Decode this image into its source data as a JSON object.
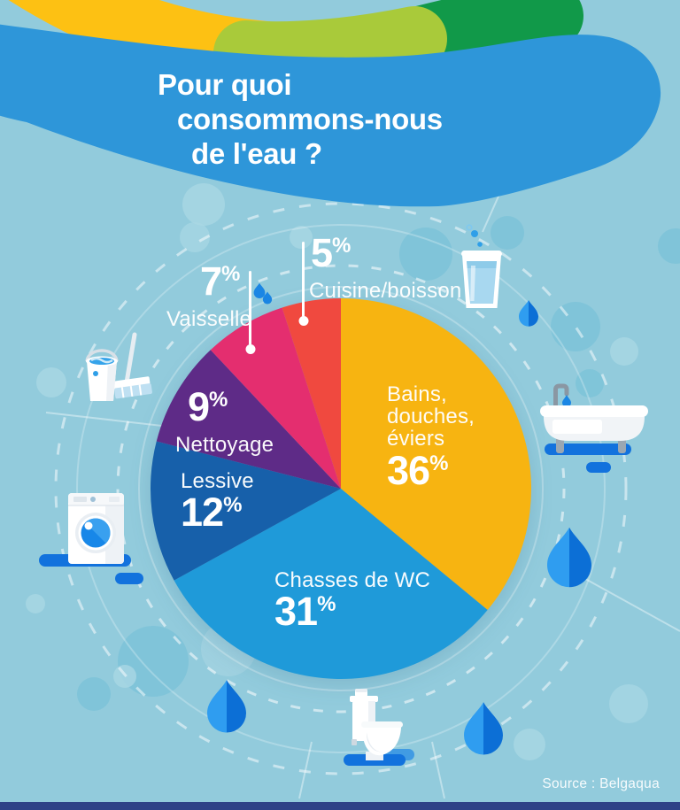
{
  "page": {
    "background_color": "#92cbdc",
    "footer_bar_color": "#2e4287",
    "source_label": "Source : Belgaqua"
  },
  "header": {
    "title_line1": "Pour quoi",
    "title_line2": "consommons-nous",
    "title_line3": "de l'eau ?",
    "blob_color": "#2e96d9",
    "band_colors": {
      "yellow": "#fdc113",
      "light_green": "#a9ca3a",
      "dark_green": "#119949"
    }
  },
  "chart_data": {
    "type": "pie",
    "title": "Pour quoi consommons-nous de l'eau ?",
    "unit": "%",
    "percent_sign": "%",
    "direction": "clockwise",
    "start_angle_deg": 0,
    "center": [
      385,
      552
    ],
    "radius": 215,
    "legend_position": "on-slice-and-callouts",
    "source": "Belgaqua",
    "slices": [
      {
        "label": "Bains, douches, éviers",
        "label_lines": [
          "Bains,",
          "douches,",
          "éviers"
        ],
        "value": 36,
        "color": "#f7b411"
      },
      {
        "label": "Chasses de WC",
        "value": 31,
        "color": "#1f9ad9"
      },
      {
        "label": "Lessive",
        "value": 12,
        "color": "#1760aa"
      },
      {
        "label": "Nettoyage",
        "value": 9,
        "color": "#5e2b87"
      },
      {
        "label": "Vaisselle",
        "value": 7,
        "color": "#e42e6f"
      },
      {
        "label": "Cuisine/boisson",
        "value": 5,
        "color": "#f0493f"
      }
    ]
  },
  "icons": {
    "water_glass": "water-glass-icon",
    "bathtub": "bathtub-icon",
    "toilet": "toilet-icon",
    "washing_machine": "washing-machine-icon",
    "cleaning_bucket_mop": "cleaning-bucket-mop-icon",
    "water_drop": "water-drop-icon"
  }
}
